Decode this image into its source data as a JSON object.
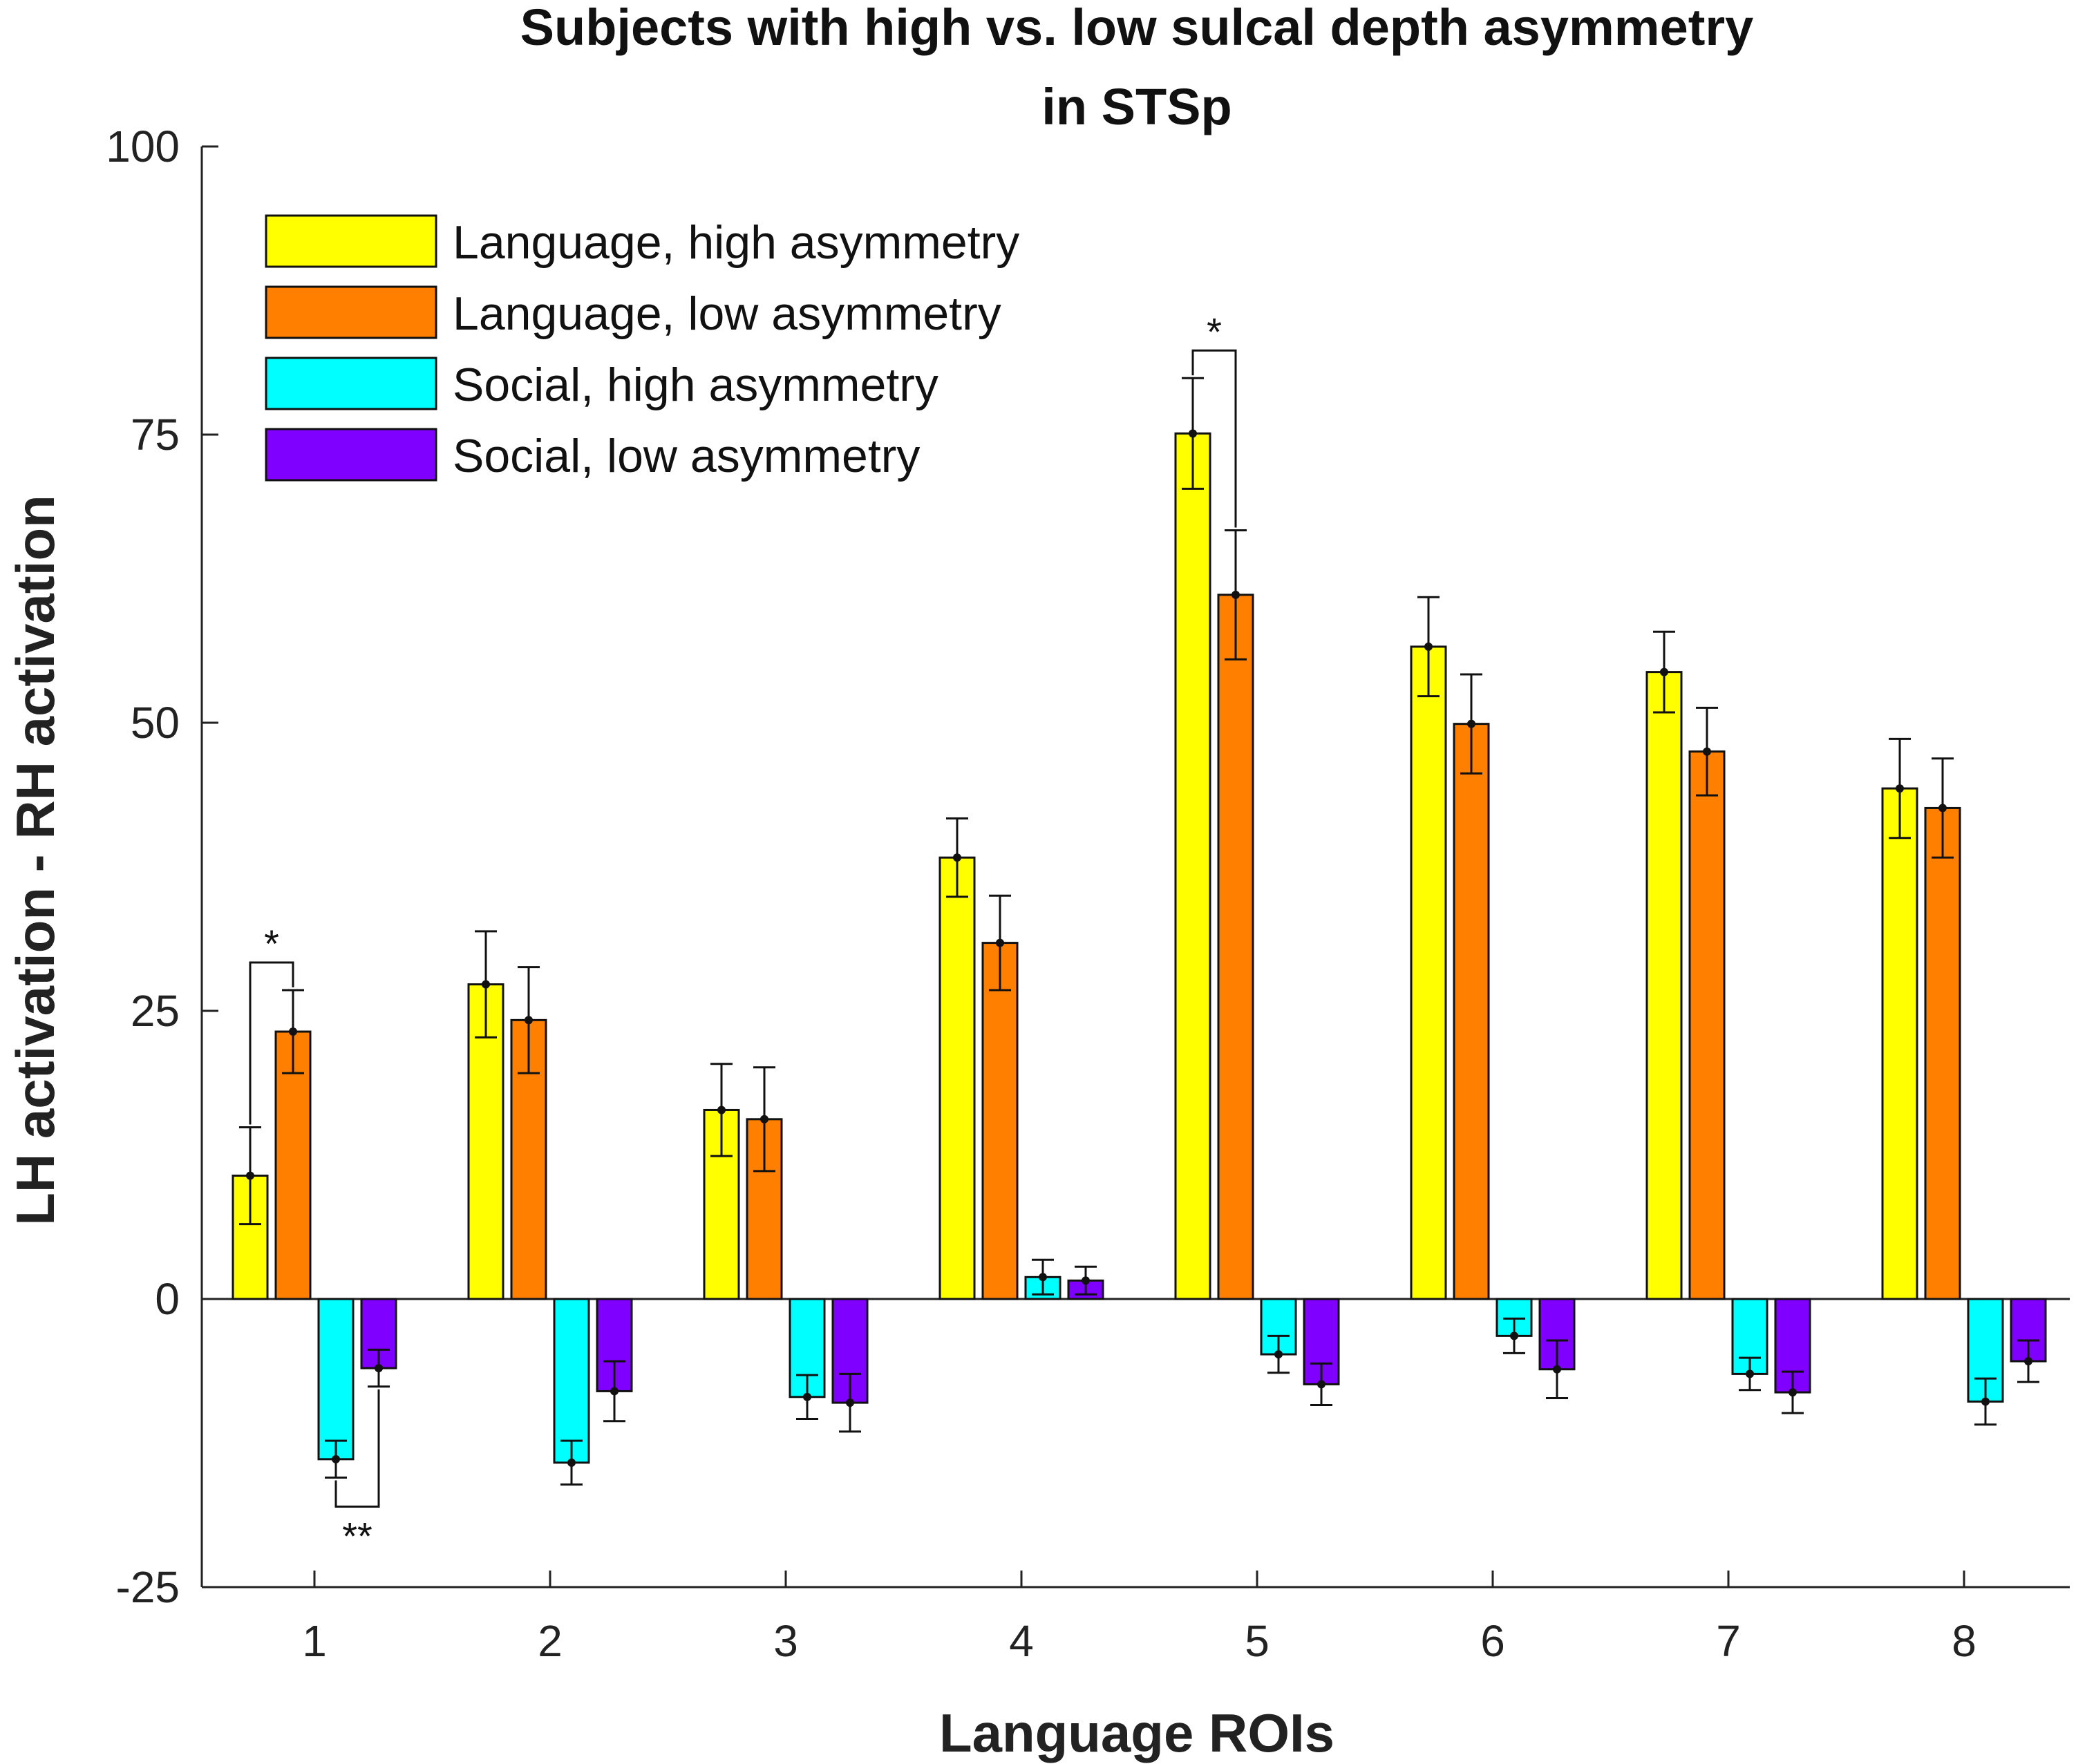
{
  "chart_data": {
    "type": "bar",
    "title": "Subjects with high vs. low sulcal depth asymmetry",
    "subtitle": "in STSp",
    "xlabel": "Language ROIs",
    "ylabel": "LH activation - RH activation",
    "ylim": [
      -25,
      100
    ],
    "yticks": [
      -25,
      0,
      25,
      50,
      75,
      100
    ],
    "categories": [
      "1",
      "2",
      "3",
      "4",
      "5",
      "6",
      "7",
      "8"
    ],
    "series": [
      {
        "name": "Language, high asymmetry",
        "color": "#ffff00",
        "values": [
          10.7,
          27.3,
          16.4,
          38.3,
          75.1,
          56.6,
          54.4,
          44.3
        ],
        "errors": [
          4.2,
          4.6,
          4.0,
          3.4,
          4.8,
          4.3,
          3.5,
          4.3
        ]
      },
      {
        "name": "Language, low asymmetry",
        "color": "#ff8000",
        "values": [
          23.2,
          24.2,
          15.6,
          30.9,
          61.1,
          49.9,
          47.5,
          42.6
        ],
        "errors": [
          3.6,
          4.6,
          4.5,
          4.1,
          5.6,
          4.3,
          3.8,
          4.3
        ]
      },
      {
        "name": "Social, high asymmetry",
        "color": "#00ffff",
        "values": [
          -13.9,
          -14.2,
          -8.5,
          1.9,
          -4.8,
          -3.2,
          -6.5,
          -8.9
        ],
        "errors": [
          1.6,
          1.9,
          1.9,
          1.5,
          1.6,
          1.5,
          1.4,
          2.0
        ]
      },
      {
        "name": "Social, low asymmetry",
        "color": "#8000ff",
        "values": [
          -6.0,
          -8.0,
          -9.0,
          1.6,
          -7.4,
          -6.1,
          -8.1,
          -5.4
        ],
        "errors": [
          1.6,
          2.6,
          2.5,
          1.2,
          1.8,
          2.5,
          1.8,
          1.8
        ]
      }
    ],
    "annotations": [
      {
        "text": "*",
        "roi": "1",
        "between": [
          "Language, high asymmetry",
          "Language, low asymmetry"
        ]
      },
      {
        "text": "**",
        "roi": "1",
        "between": [
          "Social, high asymmetry",
          "Social, low asymmetry"
        ]
      },
      {
        "text": "*",
        "roi": "5",
        "between": [
          "Language, high asymmetry",
          "Language, low asymmetry"
        ]
      }
    ],
    "legend_position": "top-left",
    "grid": false
  }
}
